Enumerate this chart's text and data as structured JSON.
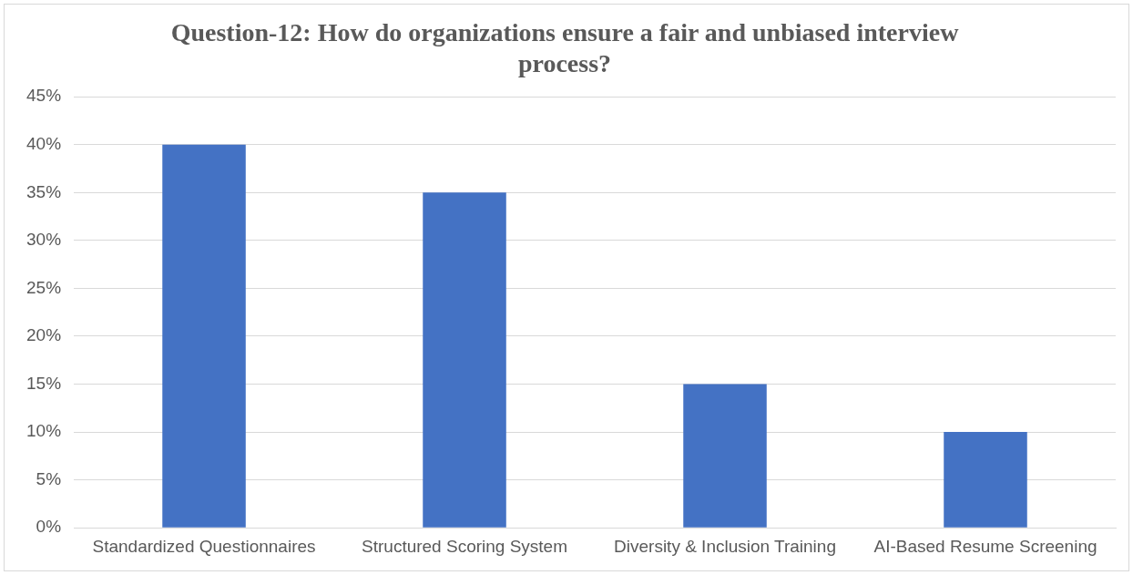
{
  "chart_data": {
    "type": "bar",
    "title": "Question-12: How do organizations ensure a fair and unbiased interview process?",
    "categories": [
      "Standardized Questionnaires",
      "Structured Scoring System",
      "Diversity & Inclusion Training",
      "AI-Based Resume Screening"
    ],
    "values": [
      40,
      35,
      15,
      10
    ],
    "color": "#4472c4",
    "ylim": [
      0,
      45
    ],
    "yticks": [
      {
        "value": 0,
        "label": "0%"
      },
      {
        "value": 5,
        "label": "5%"
      },
      {
        "value": 10,
        "label": "10%"
      },
      {
        "value": 15,
        "label": "15%"
      },
      {
        "value": 20,
        "label": "20%"
      },
      {
        "value": 25,
        "label": "25%"
      },
      {
        "value": 30,
        "label": "30%"
      },
      {
        "value": 35,
        "label": "35%"
      },
      {
        "value": 40,
        "label": "40%"
      },
      {
        "value": 45,
        "label": "45%"
      }
    ],
    "grid": "y",
    "legend": false
  }
}
